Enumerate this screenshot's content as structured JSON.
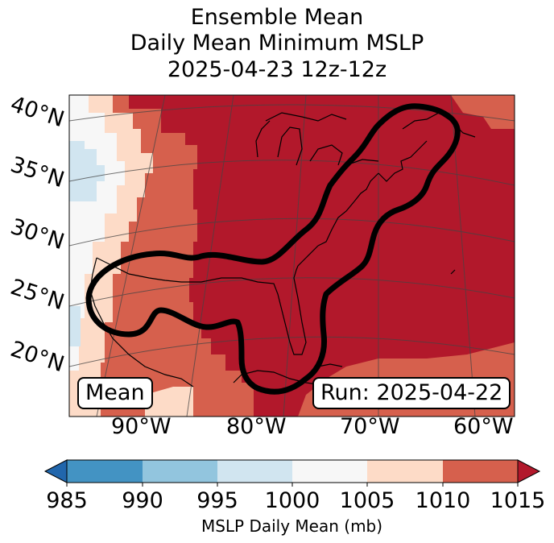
{
  "title": {
    "line1": "Ensemble Mean",
    "line2": "Daily Mean Minimum MSLP",
    "line3": "2025-04-23 12z-12z"
  },
  "latitude_labels": [
    "40°N",
    "35°N",
    "30°N",
    "25°N",
    "20°N"
  ],
  "longitude_labels": [
    "90°W",
    "80°W",
    "70°W",
    "60°W"
  ],
  "annotations": {
    "left_box": "Mean",
    "right_box": "Run: 2025-04-22"
  },
  "colorbar": {
    "ticks": [
      "985",
      "990",
      "995",
      "1000",
      "1005",
      "1010",
      "1015"
    ],
    "label": "MSLP Daily Mean (mb)",
    "colors": {
      "below_985": "#2166ac",
      "985_990": "#4393c3",
      "990_995": "#92c5de",
      "995_1000": "#d1e5f0",
      "1000_1005": "#f7f7f7",
      "1005_1010": "#fddbc7",
      "1010_1015": "#d6604d",
      "above_1015": "#b2182b"
    }
  }
}
